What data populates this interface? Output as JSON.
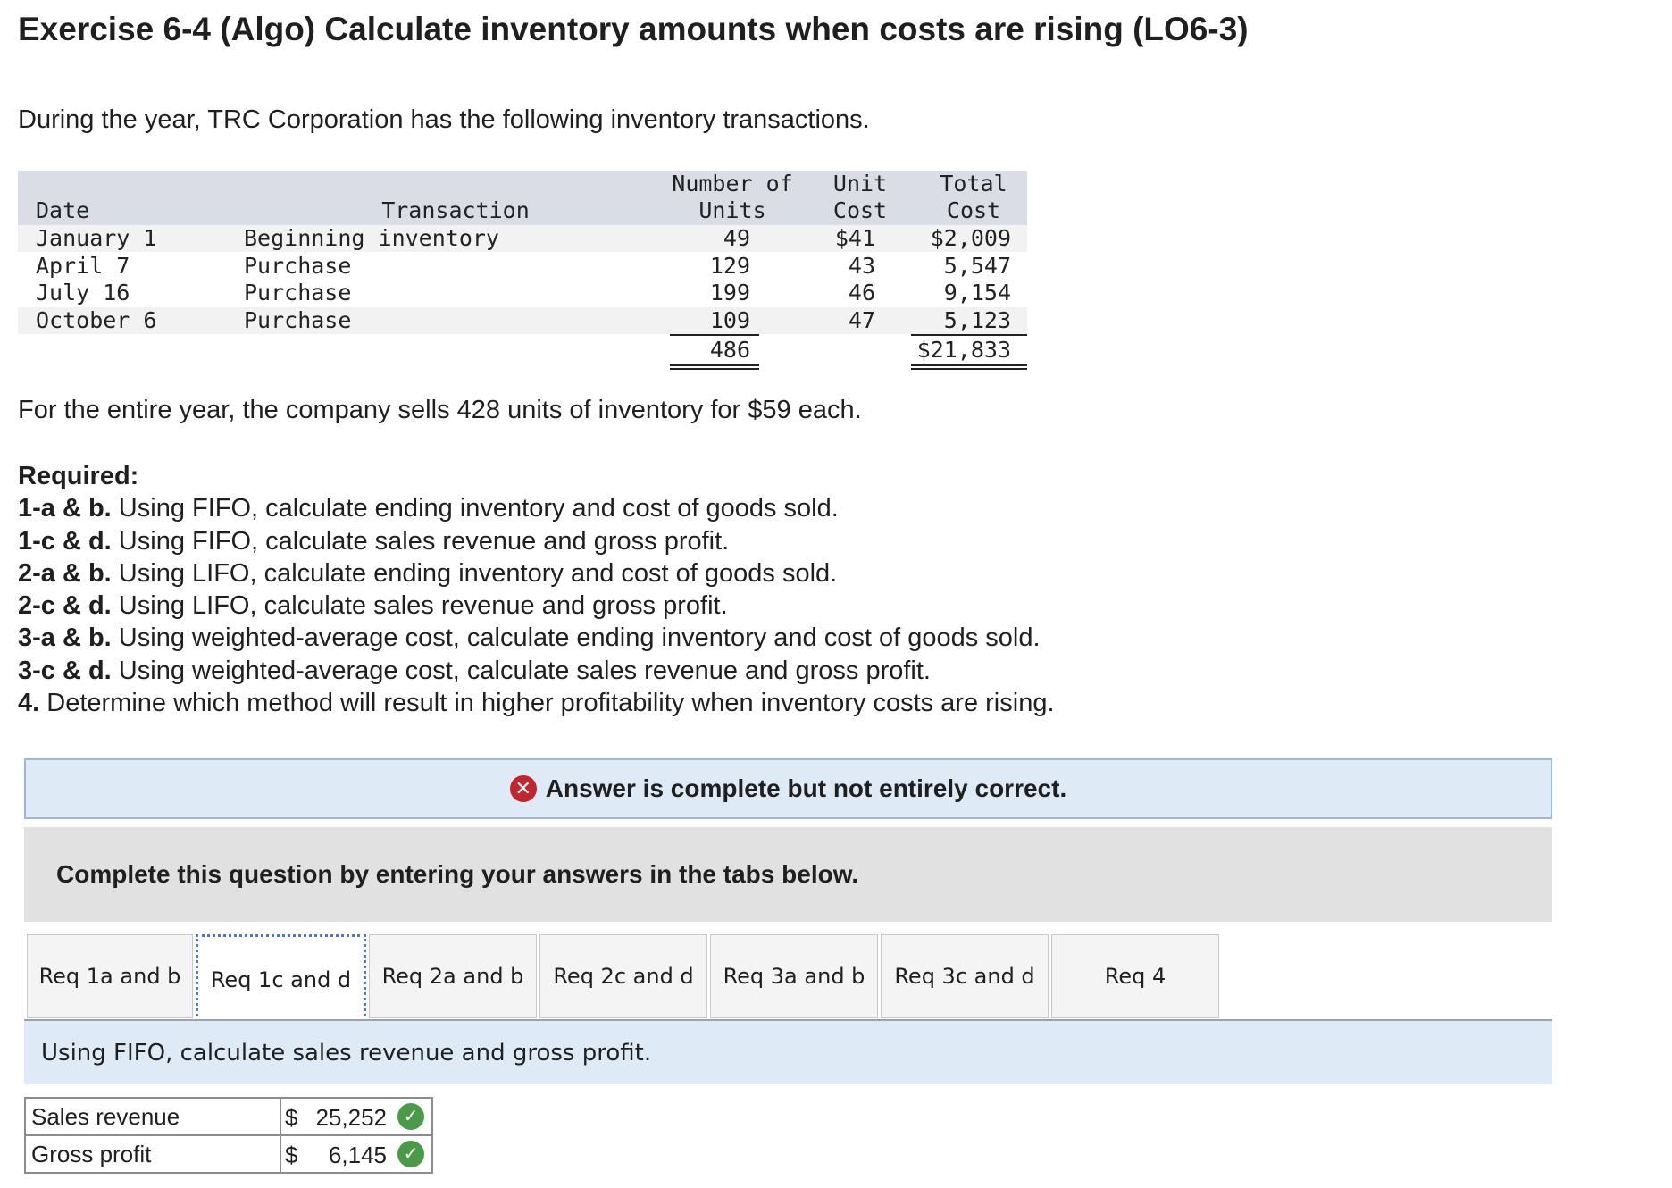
{
  "title": "Exercise 6-4 (Algo) Calculate inventory amounts when costs are rising (LO6-3)",
  "intro": "During the year, TRC Corporation has the following inventory transactions.",
  "inventory_table": {
    "headers": {
      "date": "Date",
      "transaction": "Transaction",
      "units_1": "Number of",
      "units_2": "Units",
      "unit_cost_1": "Unit",
      "unit_cost_2": "Cost",
      "total_cost_1": "Total",
      "total_cost_2": "Cost"
    },
    "rows": [
      {
        "date": "January 1",
        "transaction": "Beginning inventory",
        "units": "49",
        "unit_cost": "$41",
        "total_cost": "$2,009"
      },
      {
        "date": "April 7",
        "transaction": "Purchase",
        "units": "129",
        "unit_cost": "43",
        "total_cost": "5,547"
      },
      {
        "date": "July 16",
        "transaction": "Purchase",
        "units": "199",
        "unit_cost": "46",
        "total_cost": "9,154"
      },
      {
        "date": "October 6",
        "transaction": "Purchase",
        "units": "109",
        "unit_cost": "47",
        "total_cost": "5,123"
      }
    ],
    "totals": {
      "units": "486",
      "total_cost": "$21,833"
    }
  },
  "sales_statement": "For the entire year, the company sells 428 units of inventory for $59 each.",
  "required": {
    "title": "Required:",
    "items": [
      {
        "label": "1-a & b.",
        "text": " Using FIFO, calculate ending inventory and cost of goods sold."
      },
      {
        "label": "1-c & d.",
        "text": " Using FIFO, calculate sales revenue and gross profit."
      },
      {
        "label": "2-a & b.",
        "text": " Using LIFO, calculate ending inventory and cost of goods sold."
      },
      {
        "label": "2-c & d.",
        "text": " Using LIFO, calculate sales revenue and gross profit."
      },
      {
        "label": "3-a & b.",
        "text": " Using weighted-average cost, calculate ending inventory and cost of goods sold."
      },
      {
        "label": "3-c & d.",
        "text": " Using weighted-average cost, calculate sales revenue and gross profit."
      },
      {
        "label": "4.",
        "text": " Determine which method will result in higher profitability when inventory costs are rising."
      }
    ]
  },
  "status": {
    "icon": "x-circle-icon",
    "text": "Answer is complete but not entirely correct.",
    "color": "#c0262d"
  },
  "instruction": "Complete this question by entering your answers in the tabs below.",
  "tabs": [
    {
      "label": "Req 1a and b",
      "active": false
    },
    {
      "label": "Req 1c and d",
      "active": true
    },
    {
      "label": "Req 2a and b",
      "active": false
    },
    {
      "label": "Req 2c and d",
      "active": false
    },
    {
      "label": "Req 3a and b",
      "active": false
    },
    {
      "label": "Req 3c and d",
      "active": false
    },
    {
      "label": "Req 4",
      "active": false
    }
  ],
  "tab_panel": {
    "prompt": "Using FIFO, calculate sales revenue and gross profit."
  },
  "answers": [
    {
      "label": "Sales revenue",
      "currency": "$",
      "value": "25,252",
      "status": "correct"
    },
    {
      "label": "Gross profit",
      "currency": "$",
      "value": "6,145",
      "status": "correct"
    }
  ]
}
